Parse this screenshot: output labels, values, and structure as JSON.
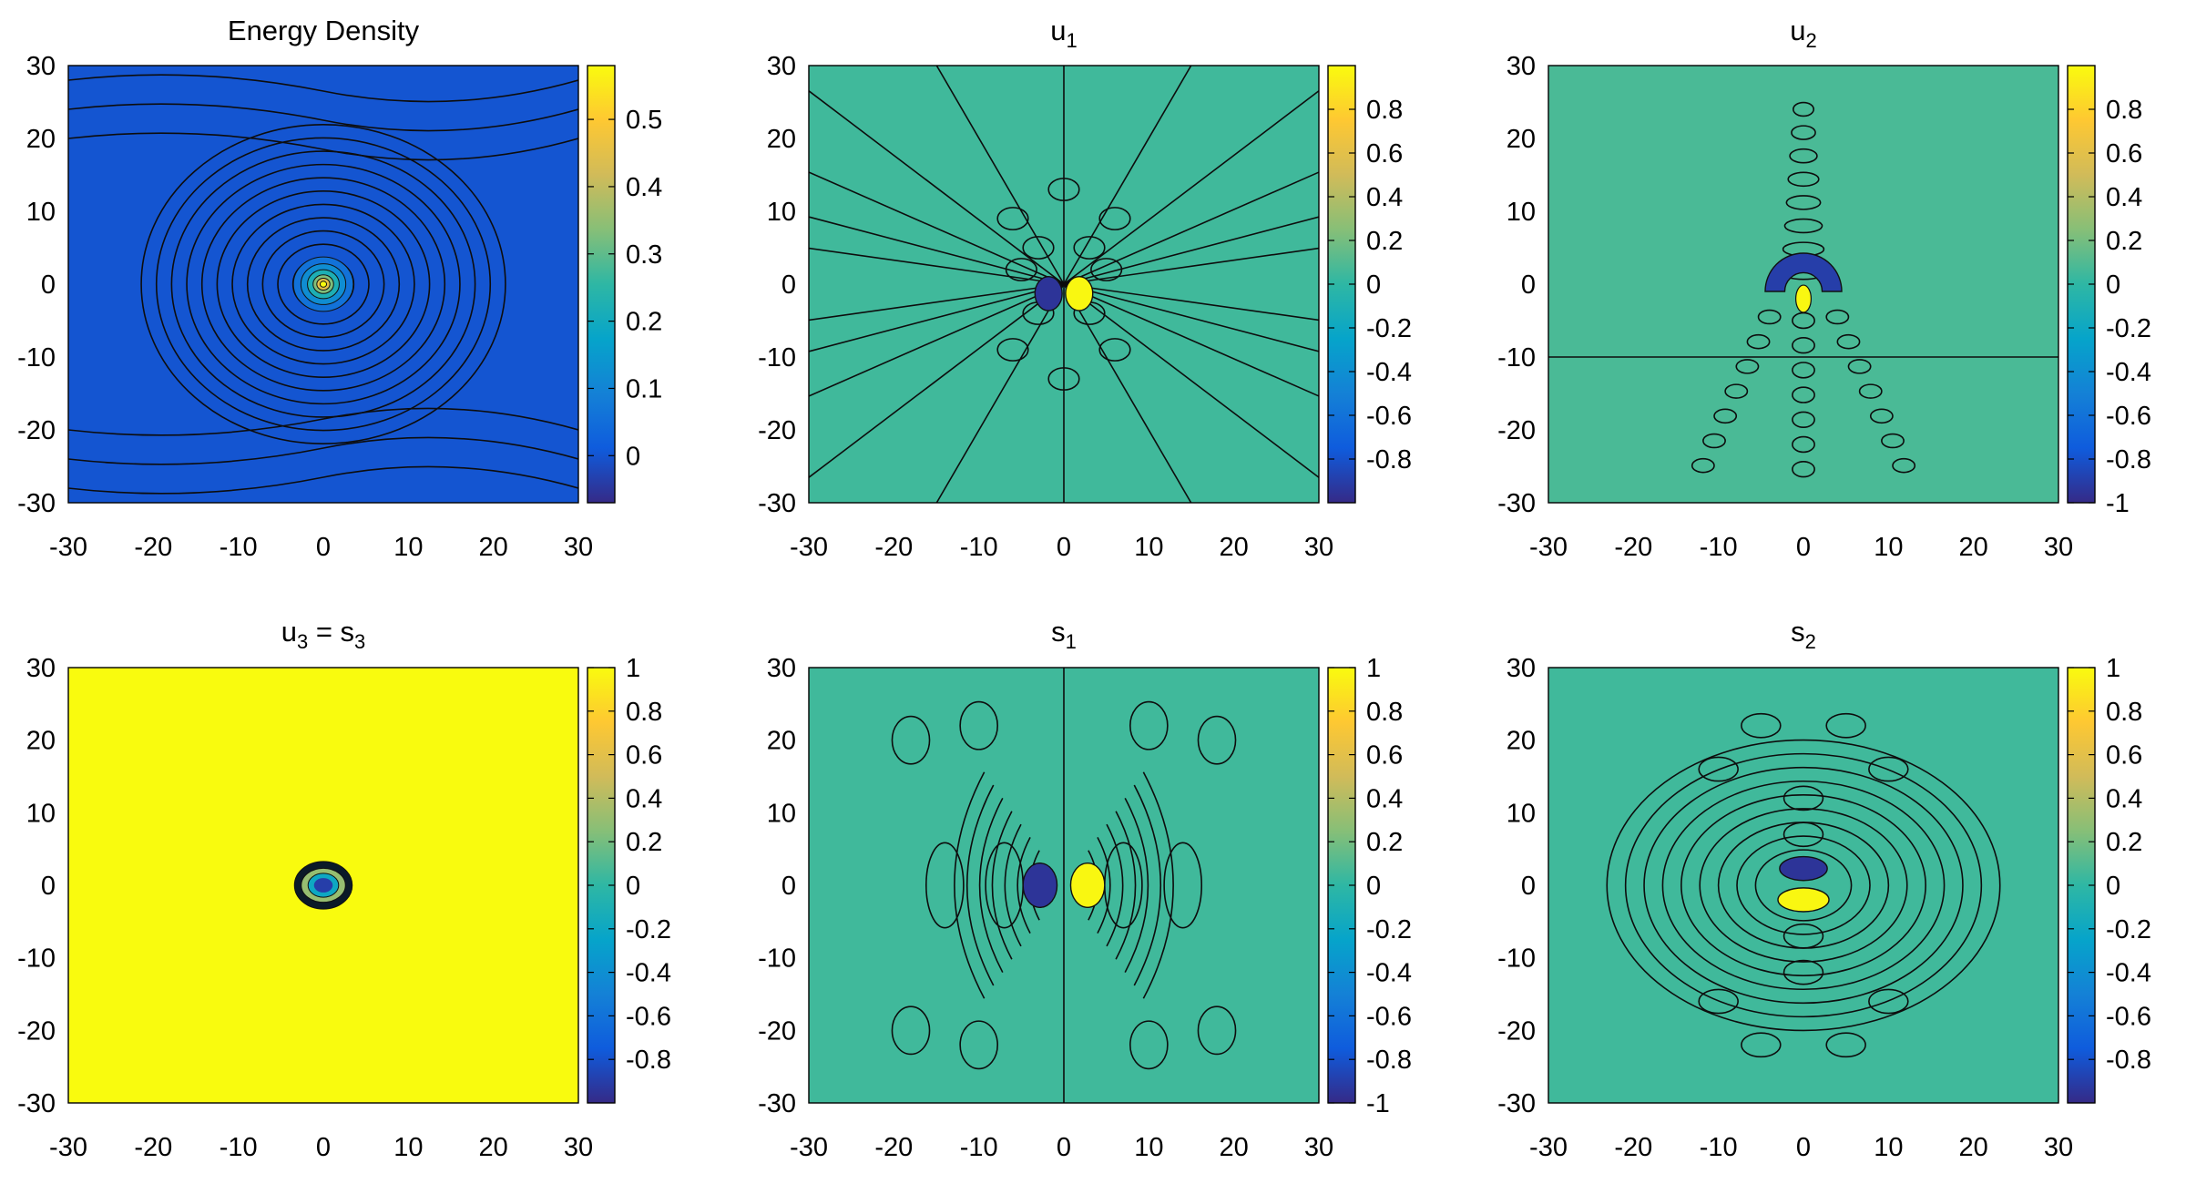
{
  "figure": {
    "colormap": [
      "#352a87",
      "#0f5cdd",
      "#1481d6",
      "#06a4ca",
      "#2eb7a4",
      "#87bf77",
      "#d1bb59",
      "#fec832",
      "#f9fb0e"
    ]
  },
  "chart_data": [
    {
      "type": "heatmap",
      "title": "Energy Density",
      "title_sub": "",
      "title_suffix": "",
      "xlim": [
        -30,
        30
      ],
      "ylim": [
        -30,
        30
      ],
      "x_ticks": [
        "-30",
        "-20",
        "-10",
        "0",
        "10",
        "20",
        "30"
      ],
      "y_ticks": [
        "-30",
        "-20",
        "-10",
        "0",
        "10",
        "20",
        "30"
      ],
      "zlim": [
        -0.07,
        0.58
      ],
      "colorbar_ticks": [
        {
          "value": 0,
          "label": "0"
        },
        {
          "value": 0.1,
          "label": "0.1"
        },
        {
          "value": 0.2,
          "label": "0.2"
        },
        {
          "value": 0.3,
          "label": "0.3"
        },
        {
          "value": 0.4,
          "label": "0.4"
        },
        {
          "value": 0.5,
          "label": "0.5"
        }
      ],
      "field": "energy",
      "background_value": 0.0,
      "central_value": 0.58
    },
    {
      "type": "heatmap",
      "title": "u",
      "title_sub": "1",
      "title_suffix": "",
      "xlim": [
        -30,
        30
      ],
      "ylim": [
        -30,
        30
      ],
      "x_ticks": [
        "-30",
        "-20",
        "-10",
        "0",
        "10",
        "20",
        "30"
      ],
      "y_ticks": [
        "-30",
        "-20",
        "-10",
        "0",
        "10",
        "20",
        "30"
      ],
      "zlim": [
        -1,
        1
      ],
      "colorbar_ticks": [
        {
          "value": -0.8,
          "label": "-0.8"
        },
        {
          "value": -0.6,
          "label": "-0.6"
        },
        {
          "value": -0.4,
          "label": "-0.4"
        },
        {
          "value": -0.2,
          "label": "-0.2"
        },
        {
          "value": 0,
          "label": "0"
        },
        {
          "value": 0.2,
          "label": "0.2"
        },
        {
          "value": 0.4,
          "label": "0.4"
        },
        {
          "value": 0.6,
          "label": "0.6"
        },
        {
          "value": 0.8,
          "label": "0.8"
        }
      ],
      "field": "u1",
      "background_value": 0.05
    },
    {
      "type": "heatmap",
      "title": "u",
      "title_sub": "2",
      "title_suffix": "",
      "xlim": [
        -30,
        30
      ],
      "ylim": [
        -30,
        30
      ],
      "x_ticks": [
        "-30",
        "-20",
        "-10",
        "0",
        "10",
        "20",
        "30"
      ],
      "y_ticks": [
        "-30",
        "-20",
        "-10",
        "0",
        "10",
        "20",
        "30"
      ],
      "zlim": [
        -1,
        1
      ],
      "colorbar_ticks": [
        {
          "value": -1,
          "label": "-1"
        },
        {
          "value": -0.8,
          "label": "-0.8"
        },
        {
          "value": -0.6,
          "label": "-0.6"
        },
        {
          "value": -0.4,
          "label": "-0.4"
        },
        {
          "value": -0.2,
          "label": "-0.2"
        },
        {
          "value": 0,
          "label": "0"
        },
        {
          "value": 0.2,
          "label": "0.2"
        },
        {
          "value": 0.4,
          "label": "0.4"
        },
        {
          "value": 0.6,
          "label": "0.6"
        },
        {
          "value": 0.8,
          "label": "0.8"
        }
      ],
      "field": "u2",
      "background_value": 0.08
    },
    {
      "type": "heatmap",
      "title": "u",
      "title_sub": "3",
      "title_suffix": " = s",
      "title_sub2": "3",
      "xlim": [
        -30,
        30
      ],
      "ylim": [
        -30,
        30
      ],
      "x_ticks": [
        "-30",
        "-20",
        "-10",
        "0",
        "10",
        "20",
        "30"
      ],
      "y_ticks": [
        "-30",
        "-20",
        "-10",
        "0",
        "10",
        "20",
        "30"
      ],
      "zlim": [
        -1,
        1
      ],
      "colorbar_ticks": [
        {
          "value": -0.8,
          "label": "-0.8"
        },
        {
          "value": -0.6,
          "label": "-0.6"
        },
        {
          "value": -0.4,
          "label": "-0.4"
        },
        {
          "value": -0.2,
          "label": "-0.2"
        },
        {
          "value": 0,
          "label": "0"
        },
        {
          "value": 0.2,
          "label": "0.2"
        },
        {
          "value": 0.4,
          "label": "0.4"
        },
        {
          "value": 0.6,
          "label": "0.6"
        },
        {
          "value": 0.8,
          "label": "0.8"
        },
        {
          "value": 1,
          "label": "1"
        }
      ],
      "field": "u3",
      "background_value": 1.0,
      "central_value": -0.9
    },
    {
      "type": "heatmap",
      "title": "s",
      "title_sub": "1",
      "title_suffix": "",
      "xlim": [
        -30,
        30
      ],
      "ylim": [
        -30,
        30
      ],
      "x_ticks": [
        "-30",
        "-20",
        "-10",
        "0",
        "10",
        "20",
        "30"
      ],
      "y_ticks": [
        "-30",
        "-20",
        "-10",
        "0",
        "10",
        "20",
        "30"
      ],
      "zlim": [
        -1,
        1
      ],
      "colorbar_ticks": [
        {
          "value": -1,
          "label": "-1"
        },
        {
          "value": -0.8,
          "label": "-0.8"
        },
        {
          "value": -0.6,
          "label": "-0.6"
        },
        {
          "value": -0.4,
          "label": "-0.4"
        },
        {
          "value": -0.2,
          "label": "-0.2"
        },
        {
          "value": 0,
          "label": "0"
        },
        {
          "value": 0.2,
          "label": "0.2"
        },
        {
          "value": 0.4,
          "label": "0.4"
        },
        {
          "value": 0.6,
          "label": "0.6"
        },
        {
          "value": 0.8,
          "label": "0.8"
        },
        {
          "value": 1,
          "label": "1"
        }
      ],
      "field": "s1",
      "background_value": 0.05
    },
    {
      "type": "heatmap",
      "title": "s",
      "title_sub": "2",
      "title_suffix": "",
      "xlim": [
        -30,
        30
      ],
      "ylim": [
        -30,
        30
      ],
      "x_ticks": [
        "-30",
        "-20",
        "-10",
        "0",
        "10",
        "20",
        "30"
      ],
      "y_ticks": [
        "-30",
        "-20",
        "-10",
        "0",
        "10",
        "20",
        "30"
      ],
      "zlim": [
        -1,
        1
      ],
      "colorbar_ticks": [
        {
          "value": -0.8,
          "label": "-0.8"
        },
        {
          "value": -0.6,
          "label": "-0.6"
        },
        {
          "value": -0.4,
          "label": "-0.4"
        },
        {
          "value": -0.2,
          "label": "-0.2"
        },
        {
          "value": 0,
          "label": "0"
        },
        {
          "value": 0.2,
          "label": "0.2"
        },
        {
          "value": 0.4,
          "label": "0.4"
        },
        {
          "value": 0.6,
          "label": "0.6"
        },
        {
          "value": 0.8,
          "label": "0.8"
        },
        {
          "value": 1,
          "label": "1"
        }
      ],
      "field": "s2",
      "background_value": 0.05
    }
  ]
}
